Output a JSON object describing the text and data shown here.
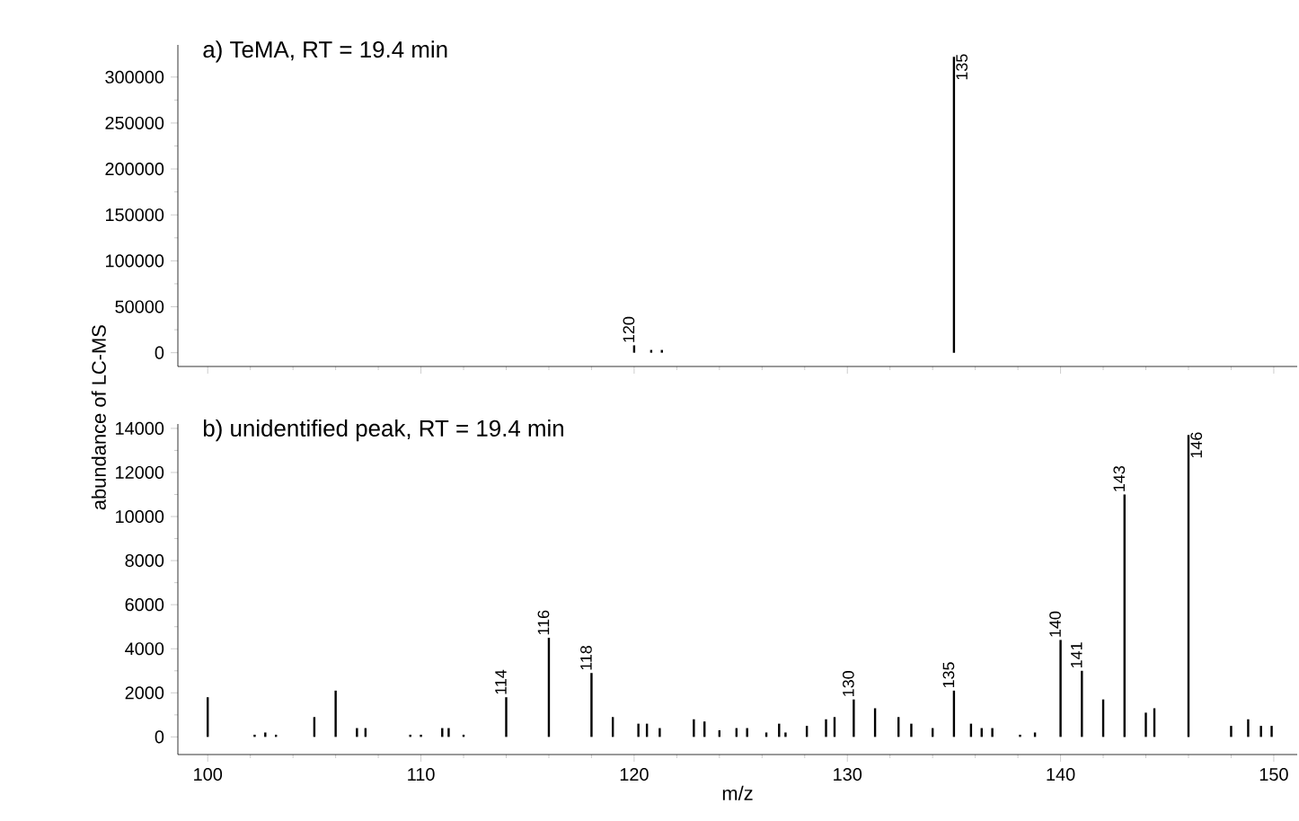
{
  "chart_data": [
    {
      "type": "bar",
      "title": "a) TeMA, RT = 19.4 min",
      "color": "#000000",
      "x": [
        120,
        120.8,
        121.3,
        135
      ],
      "values": [
        8000,
        3000,
        3000,
        322000
      ],
      "xlim": [
        98.6,
        151.1
      ],
      "ylim": [
        -15000,
        335000
      ],
      "xticks": [
        100,
        110,
        120,
        130,
        140,
        150
      ],
      "yticks": [
        0,
        50000,
        100000,
        150000,
        200000,
        250000,
        300000
      ],
      "tick_labels": "y",
      "annotations": [
        {
          "text": "120",
          "x": 120,
          "y": 8000
        },
        {
          "text": "135",
          "x": 135,
          "y": 322000
        }
      ]
    },
    {
      "type": "bar",
      "title": "b) unidentified peak, RT = 19.4 min",
      "xlabel": "m/z",
      "ylabel": "abundance of LC-MS",
      "color": "#000000",
      "x": [
        100,
        102.2,
        102.7,
        103.2,
        105,
        106,
        107,
        107.4,
        109.5,
        110,
        111,
        111.3,
        112,
        114,
        116,
        118,
        119,
        120.2,
        120.6,
        121.2,
        122.8,
        123.3,
        124,
        124.8,
        125.3,
        126.2,
        126.8,
        127.1,
        128.1,
        129,
        129.4,
        130.3,
        131.3,
        132.4,
        133,
        134,
        135,
        135.8,
        136.3,
        136.8,
        138.1,
        138.8,
        140,
        141,
        142,
        143,
        144,
        144.4,
        146,
        148,
        148.8,
        149.4,
        149.9
      ],
      "values": [
        1800,
        100,
        200,
        100,
        900,
        2100,
        400,
        400,
        100,
        100,
        400,
        400,
        100,
        1800,
        4500,
        2900,
        900,
        600,
        600,
        400,
        800,
        700,
        300,
        400,
        400,
        200,
        600,
        200,
        500,
        800,
        900,
        1700,
        1300,
        900,
        600,
        400,
        2100,
        600,
        400,
        400,
        100,
        200,
        4400,
        3000,
        1700,
        11000,
        1100,
        1300,
        13700,
        500,
        800,
        500,
        500
      ],
      "xlim": [
        98.6,
        151.1
      ],
      "ylim": [
        -800,
        14200
      ],
      "xticks": [
        100,
        110,
        120,
        130,
        140,
        150
      ],
      "yticks": [
        0,
        2000,
        4000,
        6000,
        8000,
        10000,
        12000,
        14000
      ],
      "annotations": [
        {
          "text": "114",
          "x": 114,
          "y": 1800
        },
        {
          "text": "116",
          "x": 116,
          "y": 4500
        },
        {
          "text": "118",
          "x": 118,
          "y": 2900
        },
        {
          "text": "130",
          "x": 130.3,
          "y": 1700
        },
        {
          "text": "135",
          "x": 135,
          "y": 2100
        },
        {
          "text": "140",
          "x": 140,
          "y": 4400
        },
        {
          "text": "141",
          "x": 141,
          "y": 3000
        },
        {
          "text": "143",
          "x": 143,
          "y": 11000
        },
        {
          "text": "146",
          "x": 146,
          "y": 13700
        }
      ]
    }
  ]
}
